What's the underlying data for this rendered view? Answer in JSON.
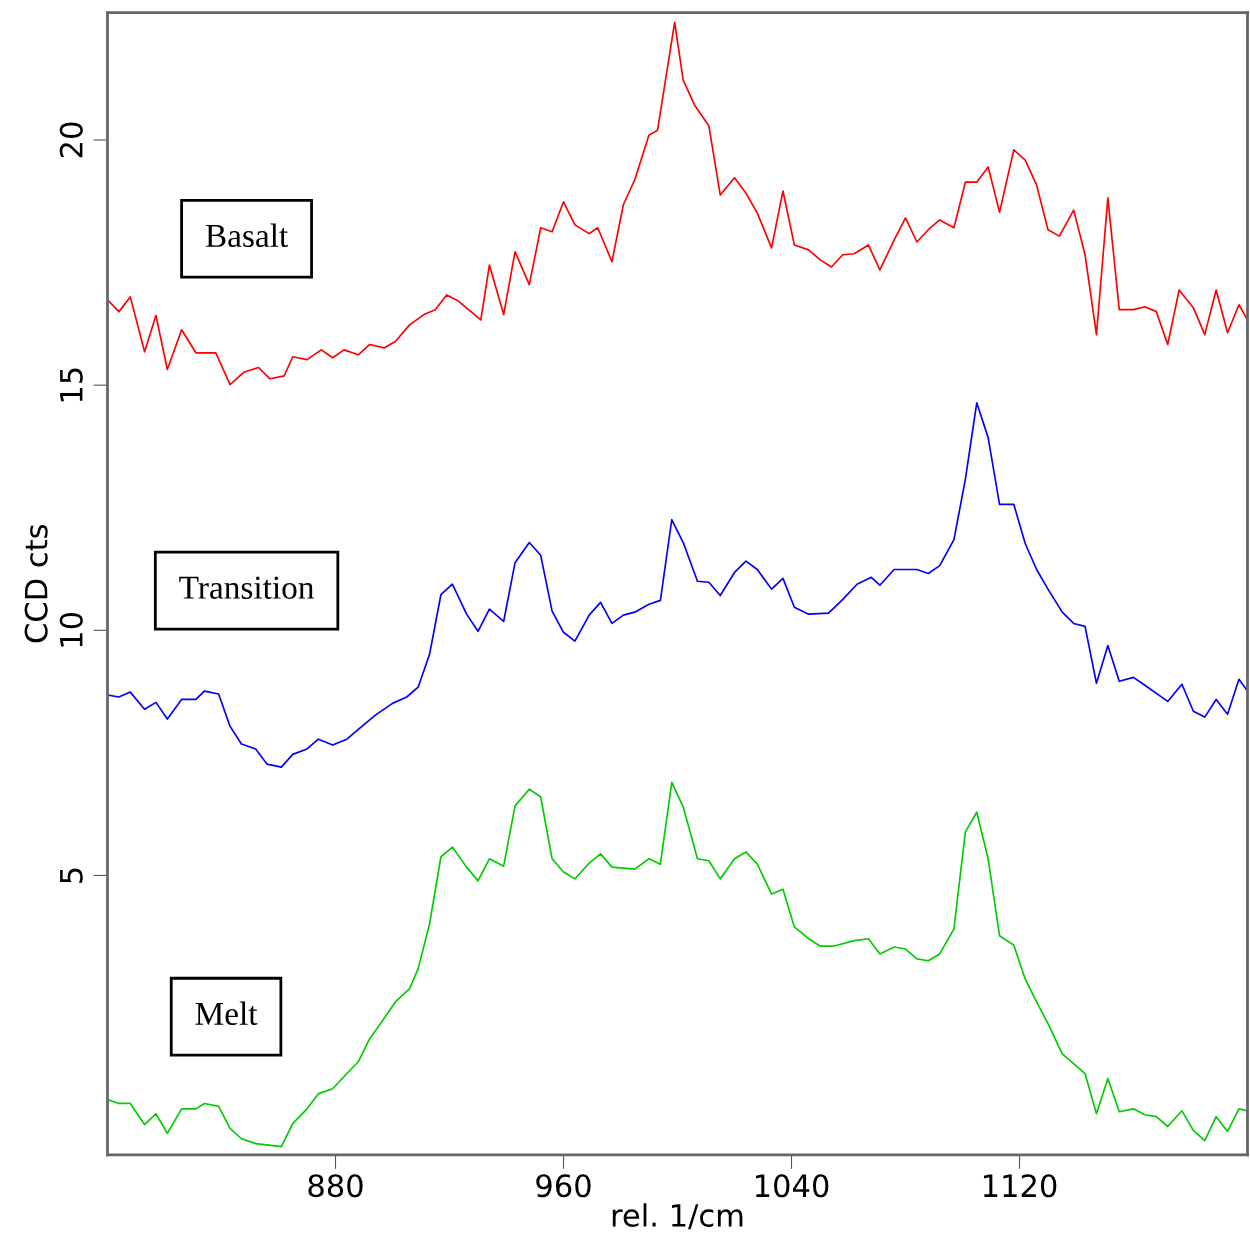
{
  "chart_data": {
    "type": "line",
    "xlabel": "rel. 1/cm",
    "ylabel": "CCD cts",
    "xlim": [
      800,
      1200
    ],
    "ylim": [
      -0.7,
      22.6
    ],
    "xticks": [
      880,
      960,
      1040,
      1120
    ],
    "yticks": [
      5,
      10,
      15,
      20
    ],
    "grid": false,
    "legend": false,
    "marker": "none",
    "line_style": "solid",
    "series": [
      {
        "name": "Basalt",
        "color": "#ff0000",
        "x": [
          800,
          804,
          808,
          813,
          817,
          821,
          826,
          831,
          838,
          843,
          848,
          853,
          857,
          862,
          865,
          870,
          875,
          879,
          883,
          888,
          892,
          897,
          901,
          906,
          911,
          915,
          919,
          923,
          931,
          934,
          939,
          943,
          948,
          952,
          956,
          960,
          964,
          969,
          972,
          977,
          981,
          985,
          990,
          993,
          999,
          1002,
          1006,
          1011,
          1015,
          1020,
          1024,
          1028,
          1033,
          1037,
          1041,
          1046,
          1050,
          1054,
          1058,
          1062,
          1067,
          1071,
          1076,
          1080,
          1084,
          1088,
          1092,
          1097,
          1101,
          1105,
          1109,
          1113,
          1118,
          1122,
          1126,
          1130,
          1134,
          1139,
          1143,
          1147,
          1151,
          1155,
          1160,
          1164,
          1168,
          1172,
          1176,
          1181,
          1185,
          1189,
          1193,
          1197,
          1200
        ],
        "values": [
          16.74,
          16.5,
          16.8,
          15.68,
          16.42,
          15.32,
          16.13,
          15.66,
          15.66,
          15.01,
          15.27,
          15.36,
          15.13,
          15.19,
          15.58,
          15.52,
          15.72,
          15.56,
          15.72,
          15.62,
          15.83,
          15.76,
          15.89,
          16.23,
          16.44,
          16.54,
          16.84,
          16.72,
          16.33,
          17.45,
          16.44,
          17.72,
          17.05,
          18.21,
          18.13,
          18.74,
          18.27,
          18.09,
          18.21,
          17.52,
          18.68,
          19.19,
          20.1,
          20.2,
          22.4,
          21.22,
          20.71,
          20.29,
          18.88,
          19.23,
          18.92,
          18.51,
          17.8,
          18.96,
          17.86,
          17.76,
          17.56,
          17.41,
          17.66,
          17.68,
          17.86,
          17.35,
          17.96,
          18.41,
          17.92,
          18.17,
          18.37,
          18.21,
          19.14,
          19.14,
          19.45,
          18.53,
          19.8,
          19.59,
          19.08,
          18.17,
          18.04,
          18.57,
          17.66,
          16.03,
          18.82,
          16.54,
          16.54,
          16.6,
          16.5,
          15.83,
          16.94,
          16.58,
          16.03,
          16.94,
          16.07,
          16.64,
          16.33
        ]
      },
      {
        "name": "Transition",
        "color": "#0000ff",
        "x": [
          800,
          804,
          808,
          813,
          817,
          821,
          826,
          831,
          834,
          839,
          843,
          847,
          852,
          856,
          861,
          865,
          870,
          874,
          879,
          884,
          888,
          894,
          900,
          905,
          909,
          913,
          917,
          921,
          926,
          930,
          934,
          939,
          943,
          948,
          952,
          956,
          960,
          964,
          969,
          973,
          977,
          981,
          985,
          990,
          994,
          998,
          1002,
          1007,
          1011,
          1015,
          1020,
          1024,
          1028,
          1033,
          1037,
          1041,
          1046,
          1053,
          1058,
          1063,
          1068,
          1071,
          1076,
          1084,
          1088,
          1092,
          1097,
          1101,
          1105,
          1109,
          1113,
          1118,
          1122,
          1126,
          1130,
          1135,
          1139,
          1143,
          1147,
          1151,
          1155,
          1160,
          1164,
          1172,
          1177,
          1181,
          1185,
          1189,
          1193,
          1197,
          1200
        ],
        "values": [
          8.68,
          8.64,
          8.74,
          8.39,
          8.53,
          8.19,
          8.59,
          8.59,
          8.76,
          8.7,
          8.04,
          7.68,
          7.58,
          7.27,
          7.21,
          7.47,
          7.58,
          7.78,
          7.66,
          7.78,
          7.98,
          8.27,
          8.51,
          8.64,
          8.84,
          9.51,
          10.73,
          10.94,
          10.33,
          9.98,
          10.43,
          10.18,
          11.38,
          11.79,
          11.53,
          10.39,
          9.96,
          9.78,
          10.31,
          10.57,
          10.14,
          10.31,
          10.37,
          10.53,
          10.61,
          12.26,
          11.79,
          11.0,
          10.98,
          10.71,
          11.18,
          11.41,
          11.24,
          10.84,
          11.06,
          10.47,
          10.33,
          10.35,
          10.63,
          10.94,
          11.08,
          10.92,
          11.24,
          11.24,
          11.16,
          11.32,
          11.85,
          13.08,
          14.64,
          13.93,
          12.57,
          12.57,
          11.77,
          11.24,
          10.84,
          10.37,
          10.14,
          10.08,
          8.92,
          9.69,
          8.96,
          9.04,
          8.88,
          8.55,
          8.9,
          8.35,
          8.23,
          8.59,
          8.29,
          9.0,
          8.76
        ]
      },
      {
        "name": "Melt",
        "color": "#00cc00",
        "x": [
          800,
          804,
          808,
          813,
          817,
          821,
          826,
          831,
          834,
          839,
          843,
          847,
          852,
          858,
          861,
          865,
          870,
          874,
          879,
          884,
          888,
          892,
          897,
          901,
          906,
          909,
          913,
          917,
          921,
          926,
          930,
          934,
          939,
          943,
          948,
          952,
          956,
          960,
          964,
          969,
          973,
          977,
          985,
          990,
          994,
          998,
          1002,
          1007,
          1011,
          1015,
          1020,
          1024,
          1028,
          1033,
          1037,
          1041,
          1046,
          1050,
          1055,
          1062,
          1067,
          1071,
          1076,
          1080,
          1084,
          1088,
          1092,
          1097,
          1101,
          1105,
          1109,
          1113,
          1118,
          1122,
          1126,
          1130,
          1135,
          1139,
          1143,
          1147,
          1151,
          1155,
          1160,
          1164,
          1168,
          1172,
          1177,
          1181,
          1185,
          1189,
          1193,
          1197,
          1200
        ],
        "values": [
          0.43,
          0.35,
          0.35,
          -0.08,
          0.14,
          -0.26,
          0.24,
          0.24,
          0.35,
          0.29,
          -0.16,
          -0.37,
          -0.47,
          -0.51,
          -0.53,
          -0.06,
          0.24,
          0.55,
          0.65,
          0.96,
          1.2,
          1.67,
          2.08,
          2.42,
          2.69,
          3.1,
          4.01,
          5.38,
          5.58,
          5.17,
          4.89,
          5.34,
          5.19,
          6.42,
          6.76,
          6.6,
          5.34,
          5.07,
          4.93,
          5.25,
          5.44,
          5.17,
          5.13,
          5.34,
          5.23,
          6.9,
          6.4,
          5.34,
          5.3,
          4.93,
          5.34,
          5.48,
          5.23,
          4.62,
          4.72,
          3.95,
          3.71,
          3.56,
          3.56,
          3.67,
          3.71,
          3.4,
          3.54,
          3.5,
          3.3,
          3.26,
          3.4,
          3.91,
          5.89,
          6.29,
          5.34,
          3.77,
          3.58,
          2.89,
          2.42,
          1.98,
          1.36,
          1.16,
          0.96,
          0.14,
          0.86,
          0.18,
          0.24,
          0.12,
          0.08,
          -0.12,
          0.2,
          -0.2,
          -0.41,
          0.08,
          -0.22,
          0.24,
          0.2
        ]
      }
    ]
  }
}
